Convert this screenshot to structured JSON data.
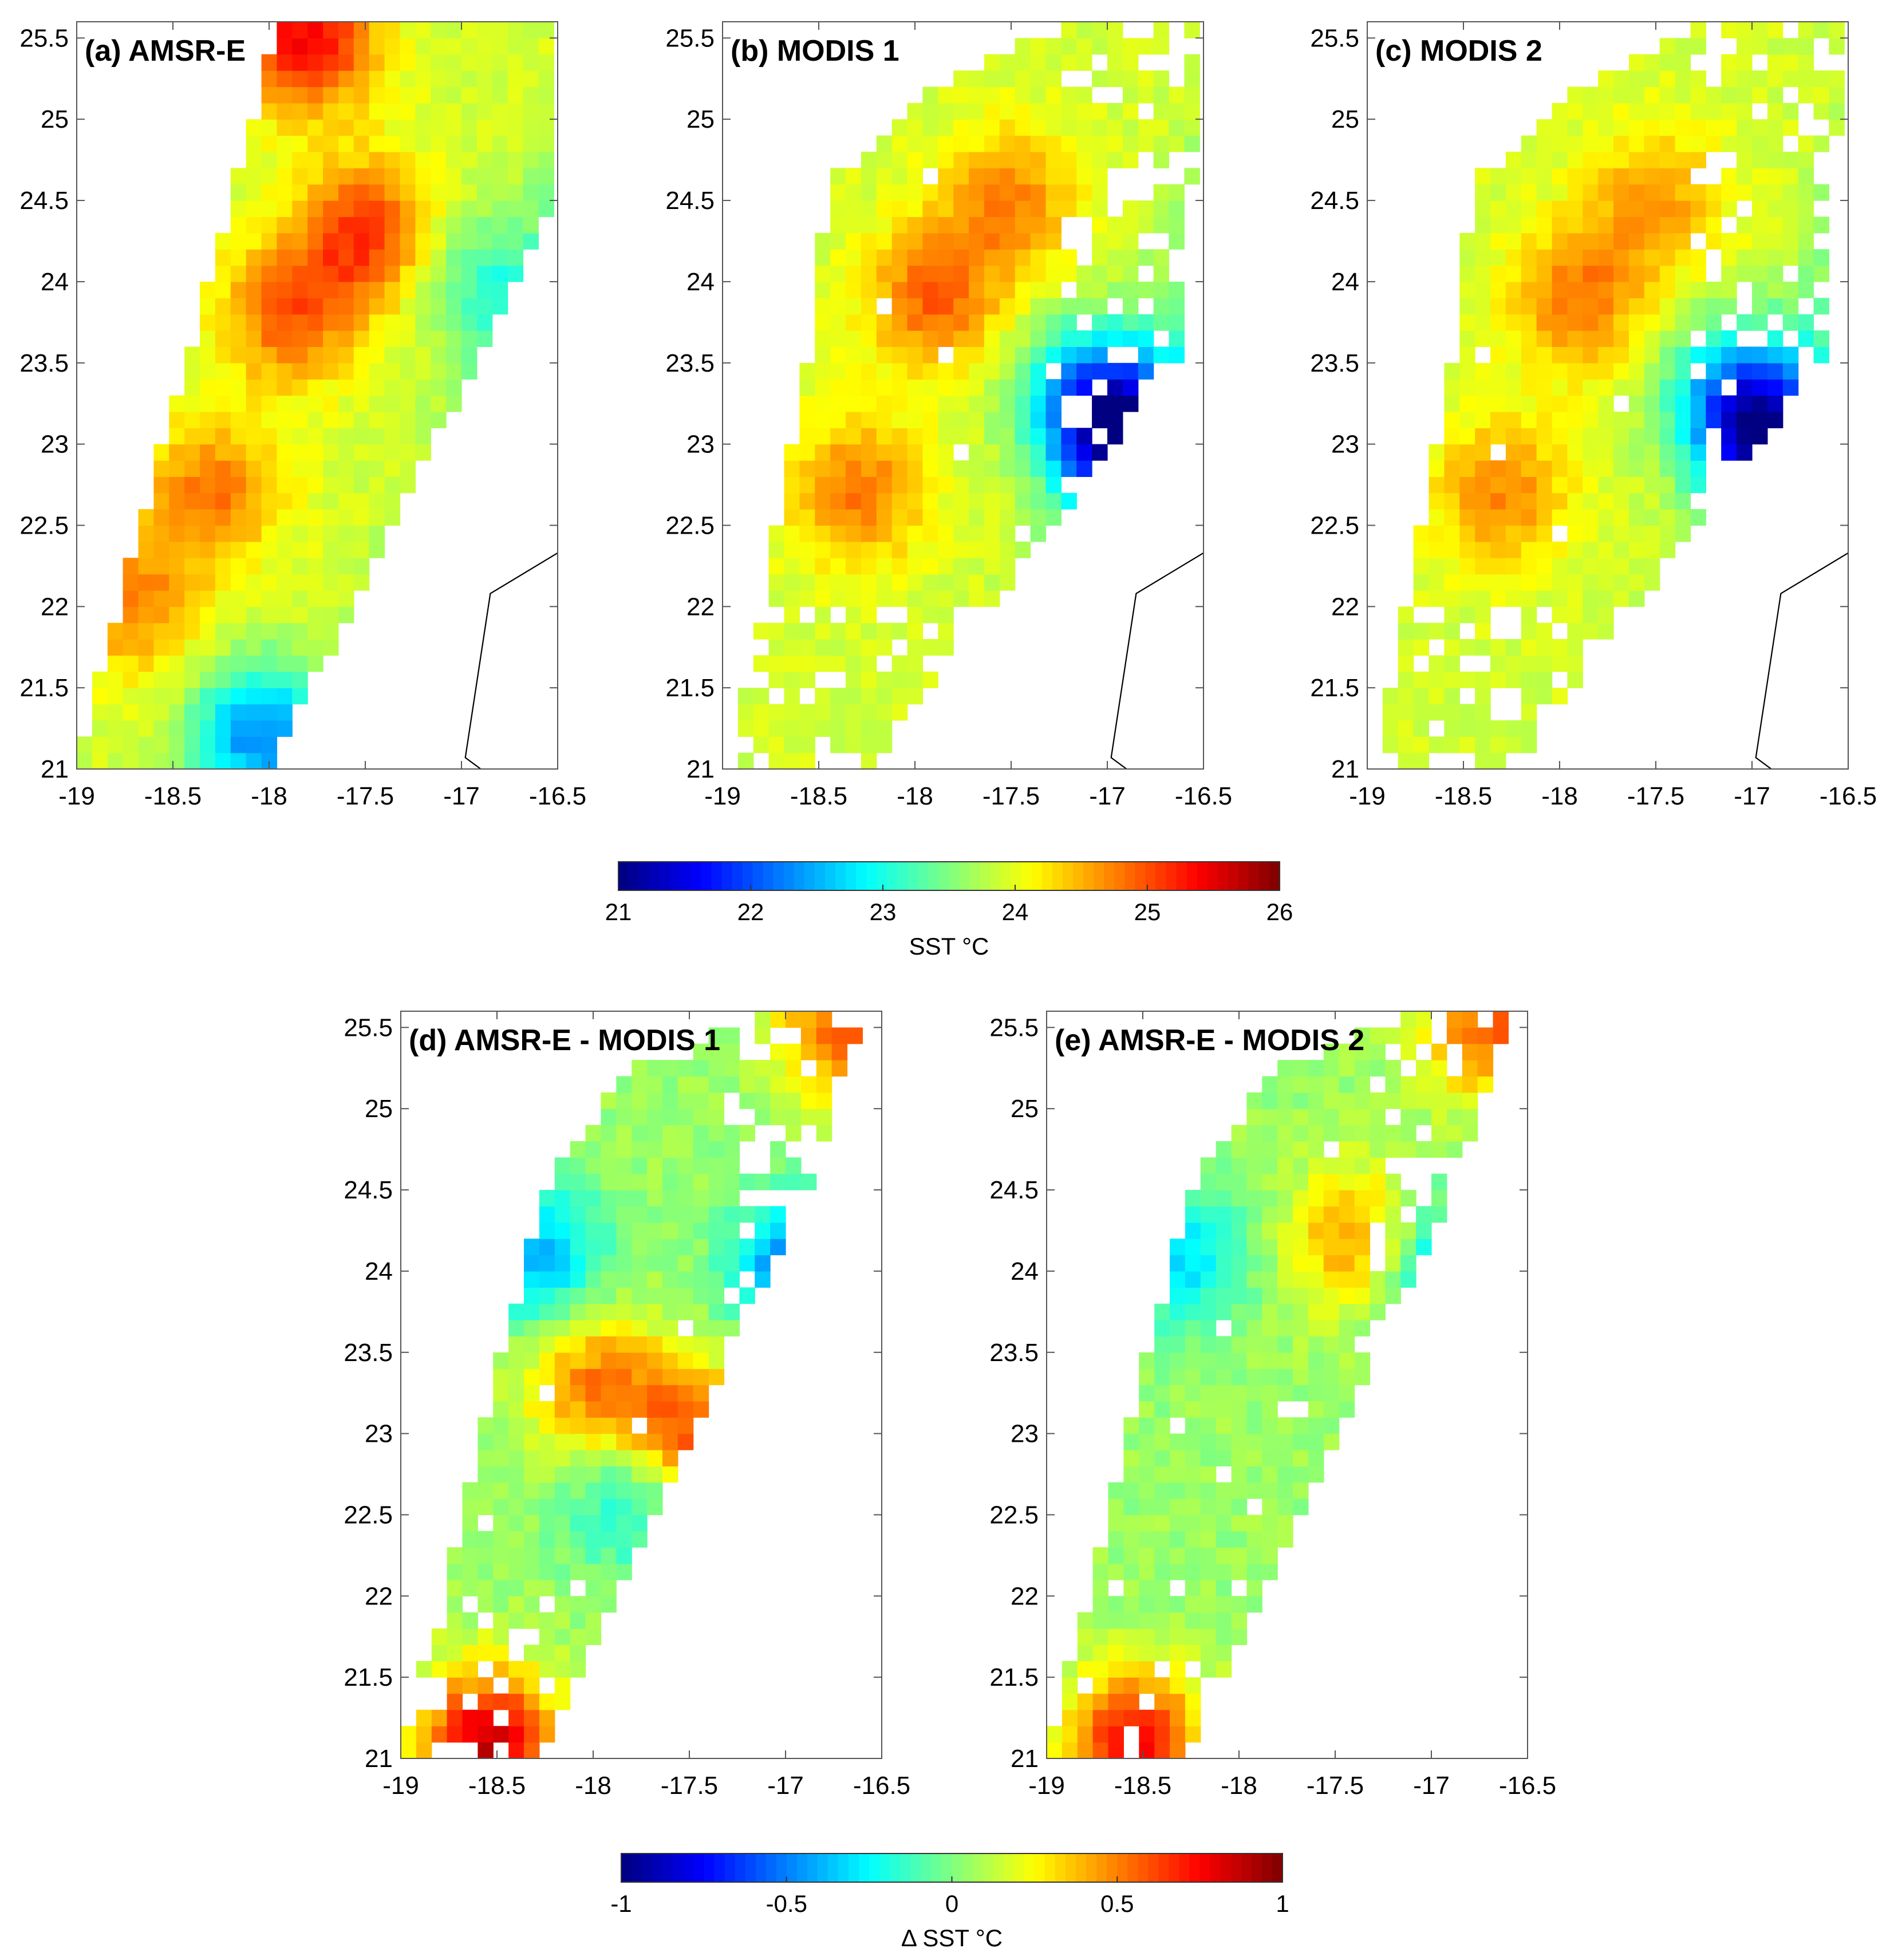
{
  "figure": {
    "colorbars": [
      {
        "id": "sst",
        "label": "SST °C",
        "ticks": [
          21,
          22,
          23,
          24,
          25,
          26
        ],
        "tick_labels": [
          "21",
          "22",
          "23",
          "24",
          "25",
          "26"
        ],
        "range": [
          21,
          26
        ],
        "colormap": "jet"
      },
      {
        "id": "dsst",
        "label": "Δ SST °C",
        "ticks": [
          -1,
          -0.5,
          0,
          0.5,
          1
        ],
        "tick_labels": [
          "-1",
          "-0.5",
          "0",
          "0.5",
          "1"
        ],
        "range": [
          -1,
          1
        ],
        "colormap": "jet"
      }
    ]
  },
  "chart_data": [
    {
      "panel": "a",
      "type": "heatmap",
      "title": "(a)  AMSR-E",
      "xlim": [
        -19,
        -16.5
      ],
      "ylim": [
        21,
        25.6
      ],
      "xticks": [
        -19,
        -18.5,
        -18,
        -17.5,
        -17,
        -16.5
      ],
      "xtick_labels": [
        "-19",
        "-18.5",
        "-18",
        "-17.5",
        "-17",
        "-16.5"
      ],
      "yticks": [
        21,
        21.5,
        22,
        22.5,
        23,
        23.5,
        24,
        24.5,
        25,
        25.5
      ],
      "ytick_labels": [
        "21",
        "21.5",
        "22",
        "22.5",
        "23",
        "23.5",
        "24",
        "24.5",
        "25",
        "25.5"
      ],
      "colorbar": "sst",
      "coastline": true,
      "hotspots": [
        {
          "lon": -17.8,
          "lat": 25.5,
          "value": 25.4
        },
        {
          "lon": -17.5,
          "lat": 24.3,
          "value": 25.1
        },
        {
          "lon": -17.9,
          "lat": 23.8,
          "value": 24.9
        },
        {
          "lon": -18.3,
          "lat": 22.7,
          "value": 24.8
        },
        {
          "lon": -18.7,
          "lat": 22.0,
          "value": 24.7
        }
      ],
      "coldspots": [
        {
          "lon": -18.05,
          "lat": 21.2,
          "value": 22.3
        },
        {
          "lon": -16.9,
          "lat": 24.0,
          "value": 23.2
        }
      ]
    },
    {
      "panel": "b",
      "type": "heatmap",
      "title": "(b)  MODIS 1",
      "xlim": [
        -19,
        -16.5
      ],
      "ylim": [
        21,
        25.6
      ],
      "xticks": [
        -19,
        -18.5,
        -18,
        -17.5,
        -17,
        -16.5
      ],
      "xtick_labels": [
        "-19",
        "-18.5",
        "-18",
        "-17.5",
        "-17",
        "-16.5"
      ],
      "yticks": [
        21,
        21.5,
        22,
        22.5,
        23,
        23.5,
        24,
        24.5,
        25,
        25.5
      ],
      "ytick_labels": [
        "21",
        "21.5",
        "22",
        "22.5",
        "23",
        "23.5",
        "24",
        "24.5",
        "25",
        "25.5"
      ],
      "colorbar": "sst",
      "coastline": true,
      "hotspots": [
        {
          "lon": -17.9,
          "lat": 23.9,
          "value": 24.9
        },
        {
          "lon": -18.3,
          "lat": 22.7,
          "value": 24.8
        },
        {
          "lon": -17.5,
          "lat": 24.5,
          "value": 24.7
        }
      ],
      "coldspots": [
        {
          "lon": -16.9,
          "lat": 23.0,
          "value": 21.8
        },
        {
          "lon": -17.1,
          "lat": 23.3,
          "value": 22.4
        }
      ]
    },
    {
      "panel": "c",
      "type": "heatmap",
      "title": "(c) MODIS 2",
      "xlim": [
        -19,
        -16.5
      ],
      "ylim": [
        21,
        25.6
      ],
      "xticks": [
        -19,
        -18.5,
        -18,
        -17.5,
        -17,
        -16.5
      ],
      "xtick_labels": [
        "-19",
        "-18.5",
        "-18",
        "-17.5",
        "-17",
        "-16.5"
      ],
      "yticks": [
        21,
        21.5,
        22,
        22.5,
        23,
        23.5,
        24,
        24.5,
        25,
        25.5
      ],
      "ytick_labels": [
        "21",
        "21.5",
        "22",
        "22.5",
        "23",
        "23.5",
        "24",
        "24.5",
        "25",
        "25.5"
      ],
      "colorbar": "sst",
      "coastline": true,
      "hotspots": [
        {
          "lon": -17.9,
          "lat": 23.9,
          "value": 24.8
        },
        {
          "lon": -18.3,
          "lat": 22.7,
          "value": 24.7
        },
        {
          "lon": -17.5,
          "lat": 24.5,
          "value": 24.6
        }
      ],
      "coldspots": [
        {
          "lon": -16.9,
          "lat": 23.0,
          "value": 22.0
        },
        {
          "lon": -17.1,
          "lat": 23.3,
          "value": 22.5
        }
      ]
    },
    {
      "panel": "d",
      "type": "heatmap",
      "title": "(d)  AMSR-E - MODIS 1",
      "xlim": [
        -19,
        -16.5
      ],
      "ylim": [
        21,
        25.6
      ],
      "xticks": [
        -19,
        -18.5,
        -18,
        -17.5,
        -17,
        -16.5
      ],
      "xtick_labels": [
        "-19",
        "-18.5",
        "-18",
        "-17.5",
        "-17",
        "-16.5"
      ],
      "yticks": [
        21,
        21.5,
        22,
        22.5,
        23,
        23.5,
        24,
        24.5,
        25,
        25.5
      ],
      "ytick_labels": [
        "21",
        "21.5",
        "22",
        "22.5",
        "23",
        "23.5",
        "24",
        "24.5",
        "25",
        "25.5"
      ],
      "colorbar": "dsst",
      "coastline": false,
      "hotspots": [
        {
          "lon": -18.55,
          "lat": 21.1,
          "value": 0.85
        },
        {
          "lon": -17.5,
          "lat": 23.0,
          "value": 0.6
        },
        {
          "lon": -18.0,
          "lat": 23.3,
          "value": 0.5
        },
        {
          "lon": -16.7,
          "lat": 25.5,
          "value": 0.55
        }
      ],
      "coldspots": [
        {
          "lon": -18.3,
          "lat": 24.1,
          "value": -0.4
        },
        {
          "lon": -16.9,
          "lat": 24.0,
          "value": -0.6
        },
        {
          "lon": -17.8,
          "lat": 22.6,
          "value": -0.25
        }
      ]
    },
    {
      "panel": "e",
      "type": "heatmap",
      "title": "(e)  AMSR-E - MODIS 2",
      "xlim": [
        -19,
        -16.5
      ],
      "ylim": [
        21,
        25.6
      ],
      "xticks": [
        -19,
        -18.5,
        -18,
        -17.5,
        -17,
        -16.5
      ],
      "xtick_labels": [
        "-19",
        "-18.5",
        "-18",
        "-17.5",
        "-17",
        "-16.5"
      ],
      "yticks": [
        21,
        21.5,
        22,
        22.5,
        23,
        23.5,
        24,
        24.5,
        25,
        25.5
      ],
      "ytick_labels": [
        "21",
        "21.5",
        "22",
        "22.5",
        "23",
        "23.5",
        "24",
        "24.5",
        "25",
        "25.5"
      ],
      "colorbar": "dsst",
      "coastline": false,
      "hotspots": [
        {
          "lon": -18.55,
          "lat": 21.1,
          "value": 0.75
        },
        {
          "lon": -16.7,
          "lat": 25.5,
          "value": 0.55
        },
        {
          "lon": -17.4,
          "lat": 24.2,
          "value": 0.45
        }
      ],
      "coldspots": [
        {
          "lon": -18.3,
          "lat": 24.1,
          "value": -0.3
        },
        {
          "lon": -16.9,
          "lat": 24.0,
          "value": -0.4
        }
      ]
    }
  ]
}
